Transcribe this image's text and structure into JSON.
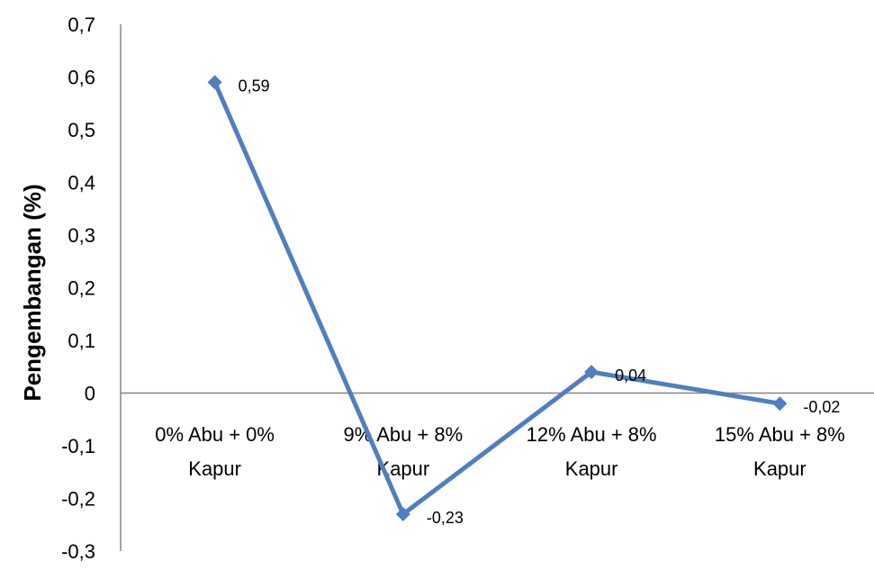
{
  "chart_data": {
    "type": "line",
    "categories": [
      [
        "0% Abu + 0%",
        "Kapur"
      ],
      [
        "9% Abu + 8%",
        "Kapur"
      ],
      [
        "12% Abu + 8%",
        "Kapur"
      ],
      [
        "15% Abu + 8%",
        "Kapur"
      ]
    ],
    "series": [
      {
        "values": [
          0.59,
          -0.23,
          0.04,
          -0.02
        ]
      }
    ],
    "data_labels": [
      "0,59",
      "-0,23",
      "0,04",
      "-0,02"
    ],
    "ylabel": "Pengembangan (%)",
    "ylim": [
      -0.3,
      0.7
    ],
    "yticks": [
      0.7,
      0.6,
      0.5,
      0.4,
      0.3,
      0.2,
      0.1,
      0,
      -0.1,
      -0.2,
      -0.3
    ],
    "ytick_labels": [
      "0,7",
      "0,6",
      "0,5",
      "0,4",
      "0,3",
      "0,2",
      "0,1",
      "0",
      "-0,1",
      "-0,2",
      "-0,3"
    ],
    "grid": false,
    "legend": "none",
    "colors": {
      "line": "#4f7fc0",
      "axis": "#868686"
    }
  }
}
